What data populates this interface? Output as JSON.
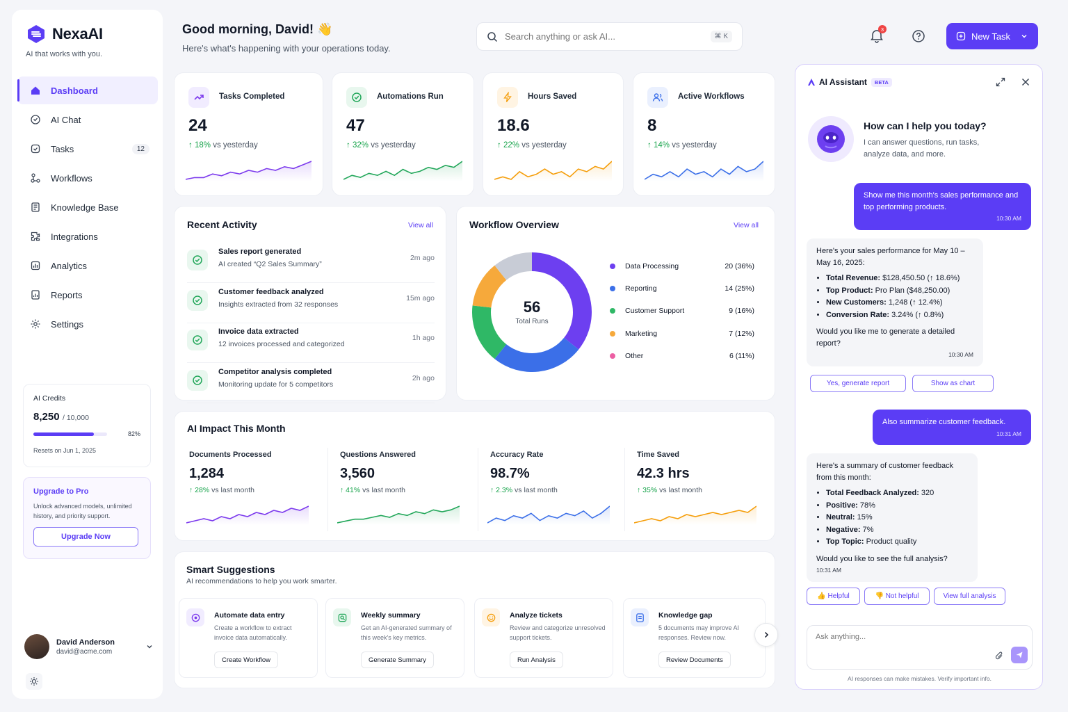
{
  "brand": {
    "name": "NexaAI",
    "tagline": "AI that works with you."
  },
  "nav": [
    {
      "label": "Dashboard",
      "icon": "home-icon",
      "active": true
    },
    {
      "label": "AI Chat",
      "icon": "chat-icon"
    },
    {
      "label": "Tasks",
      "icon": "tasks-icon",
      "badge": "12"
    },
    {
      "label": "Workflows",
      "icon": "workflow-icon"
    },
    {
      "label": "Knowledge Base",
      "icon": "book-icon"
    },
    {
      "label": "Integrations",
      "icon": "puzzle-icon"
    },
    {
      "label": "Analytics",
      "icon": "analytics-icon"
    },
    {
      "label": "Reports",
      "icon": "reports-icon"
    },
    {
      "label": "Settings",
      "icon": "gear-icon"
    }
  ],
  "credits": {
    "title": "AI Credits",
    "used": "8,250",
    "total": "/ 10,000",
    "percent": "82%",
    "percent_value": 0.82,
    "reset": "Resets on Jun 1, 2025"
  },
  "upgrade": {
    "title": "Upgrade to Pro",
    "desc": "Unlock advanced models, unlimited history, and priority support.",
    "button": "Upgrade Now"
  },
  "user": {
    "name": "David Anderson",
    "email": "david@acme.com"
  },
  "header": {
    "greeting": "Good morning, David! 👋",
    "subtitle": "Here's what's happening with your operations today.",
    "search_placeholder": "Search anything or ask AI...",
    "shortcut": "⌘ K",
    "notif_count": "3",
    "new_task": "New Task"
  },
  "stats": [
    {
      "label": "Tasks Completed",
      "value": "24",
      "delta": "18%",
      "note": "vs yesterday",
      "color": "#7c3aed",
      "bg": "#f1ecff",
      "icon": "trend-icon",
      "spark": [
        4,
        5,
        5,
        7,
        6,
        8,
        7,
        9,
        8,
        10,
        9,
        11,
        10,
        12,
        14
      ]
    },
    {
      "label": "Automations Run",
      "value": "47",
      "delta": "32%",
      "note": "vs yesterday",
      "color": "#22a75a",
      "bg": "#e8f7ee",
      "icon": "check-circle-icon",
      "spark": [
        4,
        6,
        5,
        7,
        6,
        8,
        6,
        9,
        7,
        8,
        10,
        9,
        11,
        10,
        13
      ]
    },
    {
      "label": "Hours Saved",
      "value": "18.6",
      "delta": "22%",
      "note": "vs yesterday",
      "color": "#f59e0b",
      "bg": "#fff4e3",
      "icon": "bolt-icon",
      "spark": [
        5,
        6,
        5,
        8,
        6,
        7,
        9,
        7,
        8,
        6,
        9,
        8,
        10,
        9,
        12
      ]
    },
    {
      "label": "Active Workflows",
      "value": "8",
      "delta": "14%",
      "note": "vs yesterday",
      "color": "#3b6fe8",
      "bg": "#eaf0fe",
      "icon": "users-icon",
      "spark": [
        5,
        7,
        6,
        8,
        6,
        9,
        7,
        8,
        6,
        9,
        7,
        10,
        8,
        9,
        12
      ]
    }
  ],
  "activity": {
    "title": "Recent Activity",
    "view_all": "View all",
    "items": [
      {
        "title": "Sales report generated",
        "sub": "AI created “Q2 Sales Summary”",
        "time": "2m ago"
      },
      {
        "title": "Customer feedback analyzed",
        "sub": "Insights extracted from 32 responses",
        "time": "15m ago"
      },
      {
        "title": "Invoice data extracted",
        "sub": "12 invoices processed and categorized",
        "time": "1h ago"
      },
      {
        "title": "Competitor analysis completed",
        "sub": "Monitoring update for 5 competitors",
        "time": "2h ago"
      }
    ]
  },
  "workflow": {
    "title": "Workflow Overview",
    "view_all": "View all",
    "total": "56",
    "total_label": "Total Runs",
    "items": [
      {
        "name": "Data Processing",
        "value": "20 (36%)",
        "count": 20,
        "color": "#6d3ff0"
      },
      {
        "name": "Reporting",
        "value": "14 (25%)",
        "count": 14,
        "color": "#3b6fe8"
      },
      {
        "name": "Customer Support",
        "value": "9 (16%)",
        "count": 9,
        "color": "#2fb866"
      },
      {
        "name": "Marketing",
        "value": "7 (12%)",
        "count": 7,
        "color": "#f6a93b"
      },
      {
        "name": "Other",
        "value": "6 (11%)",
        "count": 6,
        "color": "#c8ccd6"
      }
    ],
    "other_dot": "#ec5fa3"
  },
  "impact": {
    "title": "AI Impact This Month",
    "items": [
      {
        "label": "Documents Processed",
        "value": "1,284",
        "delta": "28%",
        "note": "vs last month",
        "color": "#7c3aed",
        "spark": [
          4,
          5,
          6,
          5,
          7,
          6,
          8,
          7,
          9,
          8,
          10,
          9,
          11,
          10,
          12
        ]
      },
      {
        "label": "Questions Answered",
        "value": "3,560",
        "delta": "41%",
        "note": "vs last month",
        "color": "#22a75a",
        "spark": [
          4,
          5,
          6,
          6,
          7,
          8,
          7,
          9,
          8,
          10,
          9,
          11,
          10,
          11,
          13
        ]
      },
      {
        "label": "Accuracy Rate",
        "value": "98.7%",
        "delta": "2.3%",
        "note": "vs last month",
        "color": "#3b6fe8",
        "spark": [
          5,
          7,
          6,
          8,
          7,
          9,
          6,
          8,
          7,
          9,
          8,
          10,
          7,
          9,
          12
        ]
      },
      {
        "label": "Time Saved",
        "value": "42.3 hrs",
        "delta": "35%",
        "note": "vs last month",
        "color": "#f59e0b",
        "spark": [
          4,
          5,
          6,
          5,
          7,
          6,
          8,
          7,
          8,
          9,
          8,
          9,
          10,
          9,
          12
        ]
      }
    ]
  },
  "suggestions": {
    "title": "Smart Suggestions",
    "subtitle": "AI recommendations to help you work smarter.",
    "items": [
      {
        "title": "Automate data entry",
        "desc": "Create a workflow to extract invoice data automatically.",
        "button": "Create Workflow",
        "color": "#7c3aed",
        "bg": "#f1ecff",
        "icon": "target-icon"
      },
      {
        "title": "Weekly summary",
        "desc": "Get an AI-generated summary of this week's key metrics.",
        "button": "Generate Summary",
        "color": "#22a75a",
        "bg": "#e8f7ee",
        "icon": "image-icon"
      },
      {
        "title": "Analyze tickets",
        "desc": "Review and categorize unresolved support tickets.",
        "button": "Run Analysis",
        "color": "#f59e0b",
        "bg": "#fff4e3",
        "icon": "smile-icon"
      },
      {
        "title": "Knowledge gap",
        "desc": "5 documents may improve AI responses. Review now.",
        "button": "Review Documents",
        "color": "#3b6fe8",
        "bg": "#eaf0fe",
        "icon": "document-icon"
      }
    ]
  },
  "assistant": {
    "title": "AI Assistant",
    "beta": "BETA",
    "greeting": "How can I help you today?",
    "greeting_sub": "I can answer questions, run tasks, analyze data, and more.",
    "msg1": {
      "text": "Show me this month's sales performance and top performing products.",
      "time": "10:30 AM"
    },
    "reply1": {
      "intro": "Here's your sales performance for May 10 – May 16, 2025:",
      "items": [
        {
          "k": "Total Revenue:",
          "v": " $128,450.50 (↑ 18.6%)"
        },
        {
          "k": "Top Product:",
          "v": " Pro Plan ($48,250.00)"
        },
        {
          "k": "New Customers:",
          "v": " 1,248 (↑ 12.4%)"
        },
        {
          "k": "Conversion Rate:",
          "v": " 3.24% (↑ 0.8%)"
        }
      ],
      "outro": "Would you like me to generate a detailed report?",
      "time": "10:30 AM"
    },
    "chips1": [
      "Yes, generate report",
      "Show as chart"
    ],
    "msg2": {
      "text": "Also summarize customer feedback.",
      "time": "10:31 AM"
    },
    "reply2": {
      "intro": "Here's a summary of customer feedback from this month:",
      "items": [
        {
          "k": "Total Feedback Analyzed:",
          "v": " 320"
        },
        {
          "k": "Positive:",
          "v": " 78%"
        },
        {
          "k": "Neutral:",
          "v": " 15%"
        },
        {
          "k": "Negative:",
          "v": " 7%"
        },
        {
          "k": "Top Topic:",
          "v": " Product quality"
        }
      ],
      "outro": "Would you like to see the full analysis?",
      "time": "10:31 AM"
    },
    "chips2": [
      "👍 Helpful",
      "👎 Not helpful",
      "View full analysis"
    ],
    "input_placeholder": "Ask anything...",
    "disclaimer": "AI responses can make mistakes. Verify important info."
  }
}
